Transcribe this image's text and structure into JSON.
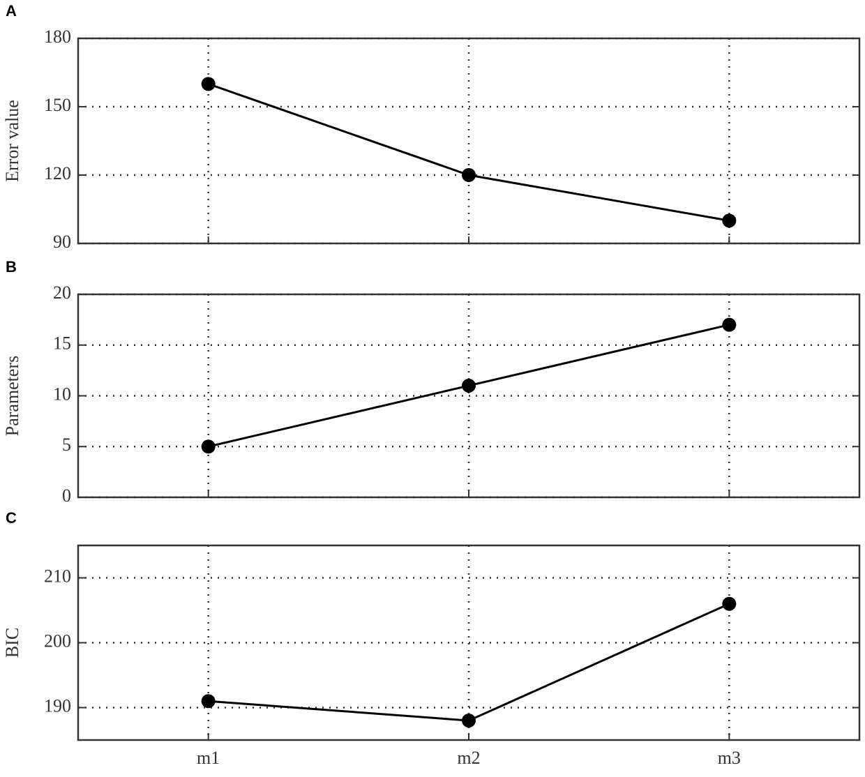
{
  "chart_data": [
    {
      "type": "line",
      "panel_label": "A",
      "ylabel": "Error value",
      "categories": [
        null,
        null,
        null
      ],
      "series": [
        {
          "color": "#000000",
          "values": [
            160,
            120,
            100
          ]
        }
      ],
      "ylim": [
        90,
        180
      ],
      "yticks": [
        90,
        120,
        150,
        180
      ],
      "grid": true
    },
    {
      "type": "line",
      "panel_label": "B",
      "ylabel": "Parameters",
      "categories": [
        null,
        null,
        null
      ],
      "series": [
        {
          "color": "#000000",
          "values": [
            5,
            11,
            17
          ]
        }
      ],
      "ylim": [
        0,
        20
      ],
      "yticks": [
        0,
        5,
        10,
        15,
        20
      ],
      "grid": true
    },
    {
      "type": "line",
      "panel_label": "C",
      "ylabel": "BIC",
      "categories": [
        "m1",
        "m2",
        "m3"
      ],
      "series": [
        {
          "color": "#000000",
          "values": [
            191,
            188,
            206
          ]
        }
      ],
      "ylim": [
        185,
        215
      ],
      "yticks": [
        190,
        200,
        210
      ],
      "grid": true
    }
  ]
}
